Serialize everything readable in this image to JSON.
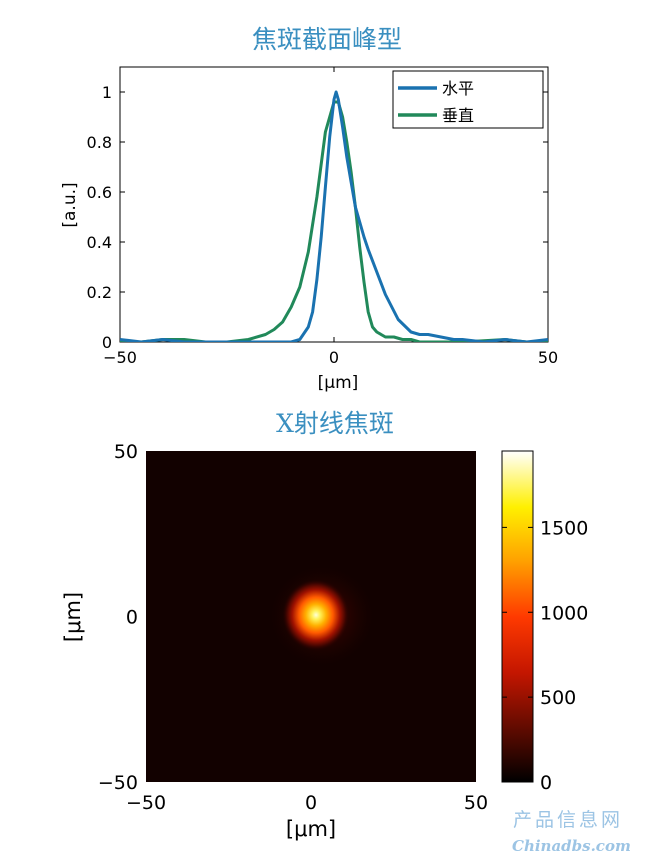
{
  "watermark": {
    "line1": "产品信息网",
    "line2": "Chinadbs.com"
  },
  "chart_data": [
    {
      "type": "line",
      "title": "焦斑截面峰型",
      "xlabel": "[μm]",
      "ylabel": "[a.u.]",
      "xlim": [
        -50,
        50
      ],
      "ylim": [
        0,
        1.1
      ],
      "xticks": [
        "−50",
        "0",
        "50"
      ],
      "yticks": [
        "0",
        "0.2",
        "0.4",
        "0.6",
        "0.8",
        "1"
      ],
      "legend_position": "top-right",
      "series": [
        {
          "name": "水平",
          "color": "#1a72b0",
          "x": [
            -50,
            -45,
            -40,
            -35,
            -30,
            -25,
            -20,
            -16,
            -12,
            -10,
            -8,
            -6,
            -5,
            -4,
            -3,
            -2,
            -1,
            0,
            0.5,
            1,
            2,
            3,
            4,
            5,
            6,
            7,
            8,
            10,
            12,
            15,
            18,
            20,
            22,
            25,
            28,
            30,
            35,
            40,
            45,
            50
          ],
          "y": [
            0.01,
            0,
            0.01,
            0,
            0,
            0,
            0,
            0,
            0,
            0,
            0.01,
            0.06,
            0.12,
            0.25,
            0.42,
            0.62,
            0.82,
            0.97,
            1.0,
            0.97,
            0.86,
            0.74,
            0.64,
            0.54,
            0.48,
            0.42,
            0.37,
            0.28,
            0.19,
            0.09,
            0.04,
            0.03,
            0.03,
            0.02,
            0.01,
            0.01,
            0,
            0.01,
            0,
            0.01
          ]
        },
        {
          "name": "垂直",
          "color": "#21895a",
          "x": [
            -50,
            -45,
            -40,
            -37,
            -35,
            -30,
            -25,
            -20,
            -16,
            -14,
            -12,
            -10,
            -8,
            -6,
            -4,
            -2,
            0,
            1,
            2,
            3,
            4,
            5,
            6,
            7,
            8,
            9,
            10,
            12,
            14,
            16,
            18,
            20,
            25,
            30,
            40,
            45,
            50
          ],
          "y": [
            0,
            0,
            0.01,
            0.01,
            0.01,
            0,
            0,
            0.01,
            0.03,
            0.05,
            0.08,
            0.14,
            0.22,
            0.36,
            0.58,
            0.84,
            0.96,
            0.96,
            0.9,
            0.8,
            0.68,
            0.54,
            0.38,
            0.24,
            0.12,
            0.06,
            0.04,
            0.02,
            0.02,
            0.01,
            0.01,
            0,
            0,
            0,
            0.01,
            0,
            0
          ]
        }
      ]
    },
    {
      "type": "heatmap",
      "title": "X射线焦斑",
      "xlabel": "[μm]",
      "ylabel": "[μm]",
      "xlim": [
        -50,
        50
      ],
      "ylim": [
        -50,
        50
      ],
      "xticks": [
        "−50",
        "0",
        "50"
      ],
      "yticks": [
        "−50",
        "0",
        "50"
      ],
      "colorscale": "hot",
      "colorbar": {
        "range": [
          0,
          1950
        ],
        "ticks": [
          "0",
          "500",
          "1000",
          "1500"
        ]
      },
      "spot": {
        "center_x": 0,
        "center_y": 0,
        "peak": 1900
      }
    }
  ]
}
